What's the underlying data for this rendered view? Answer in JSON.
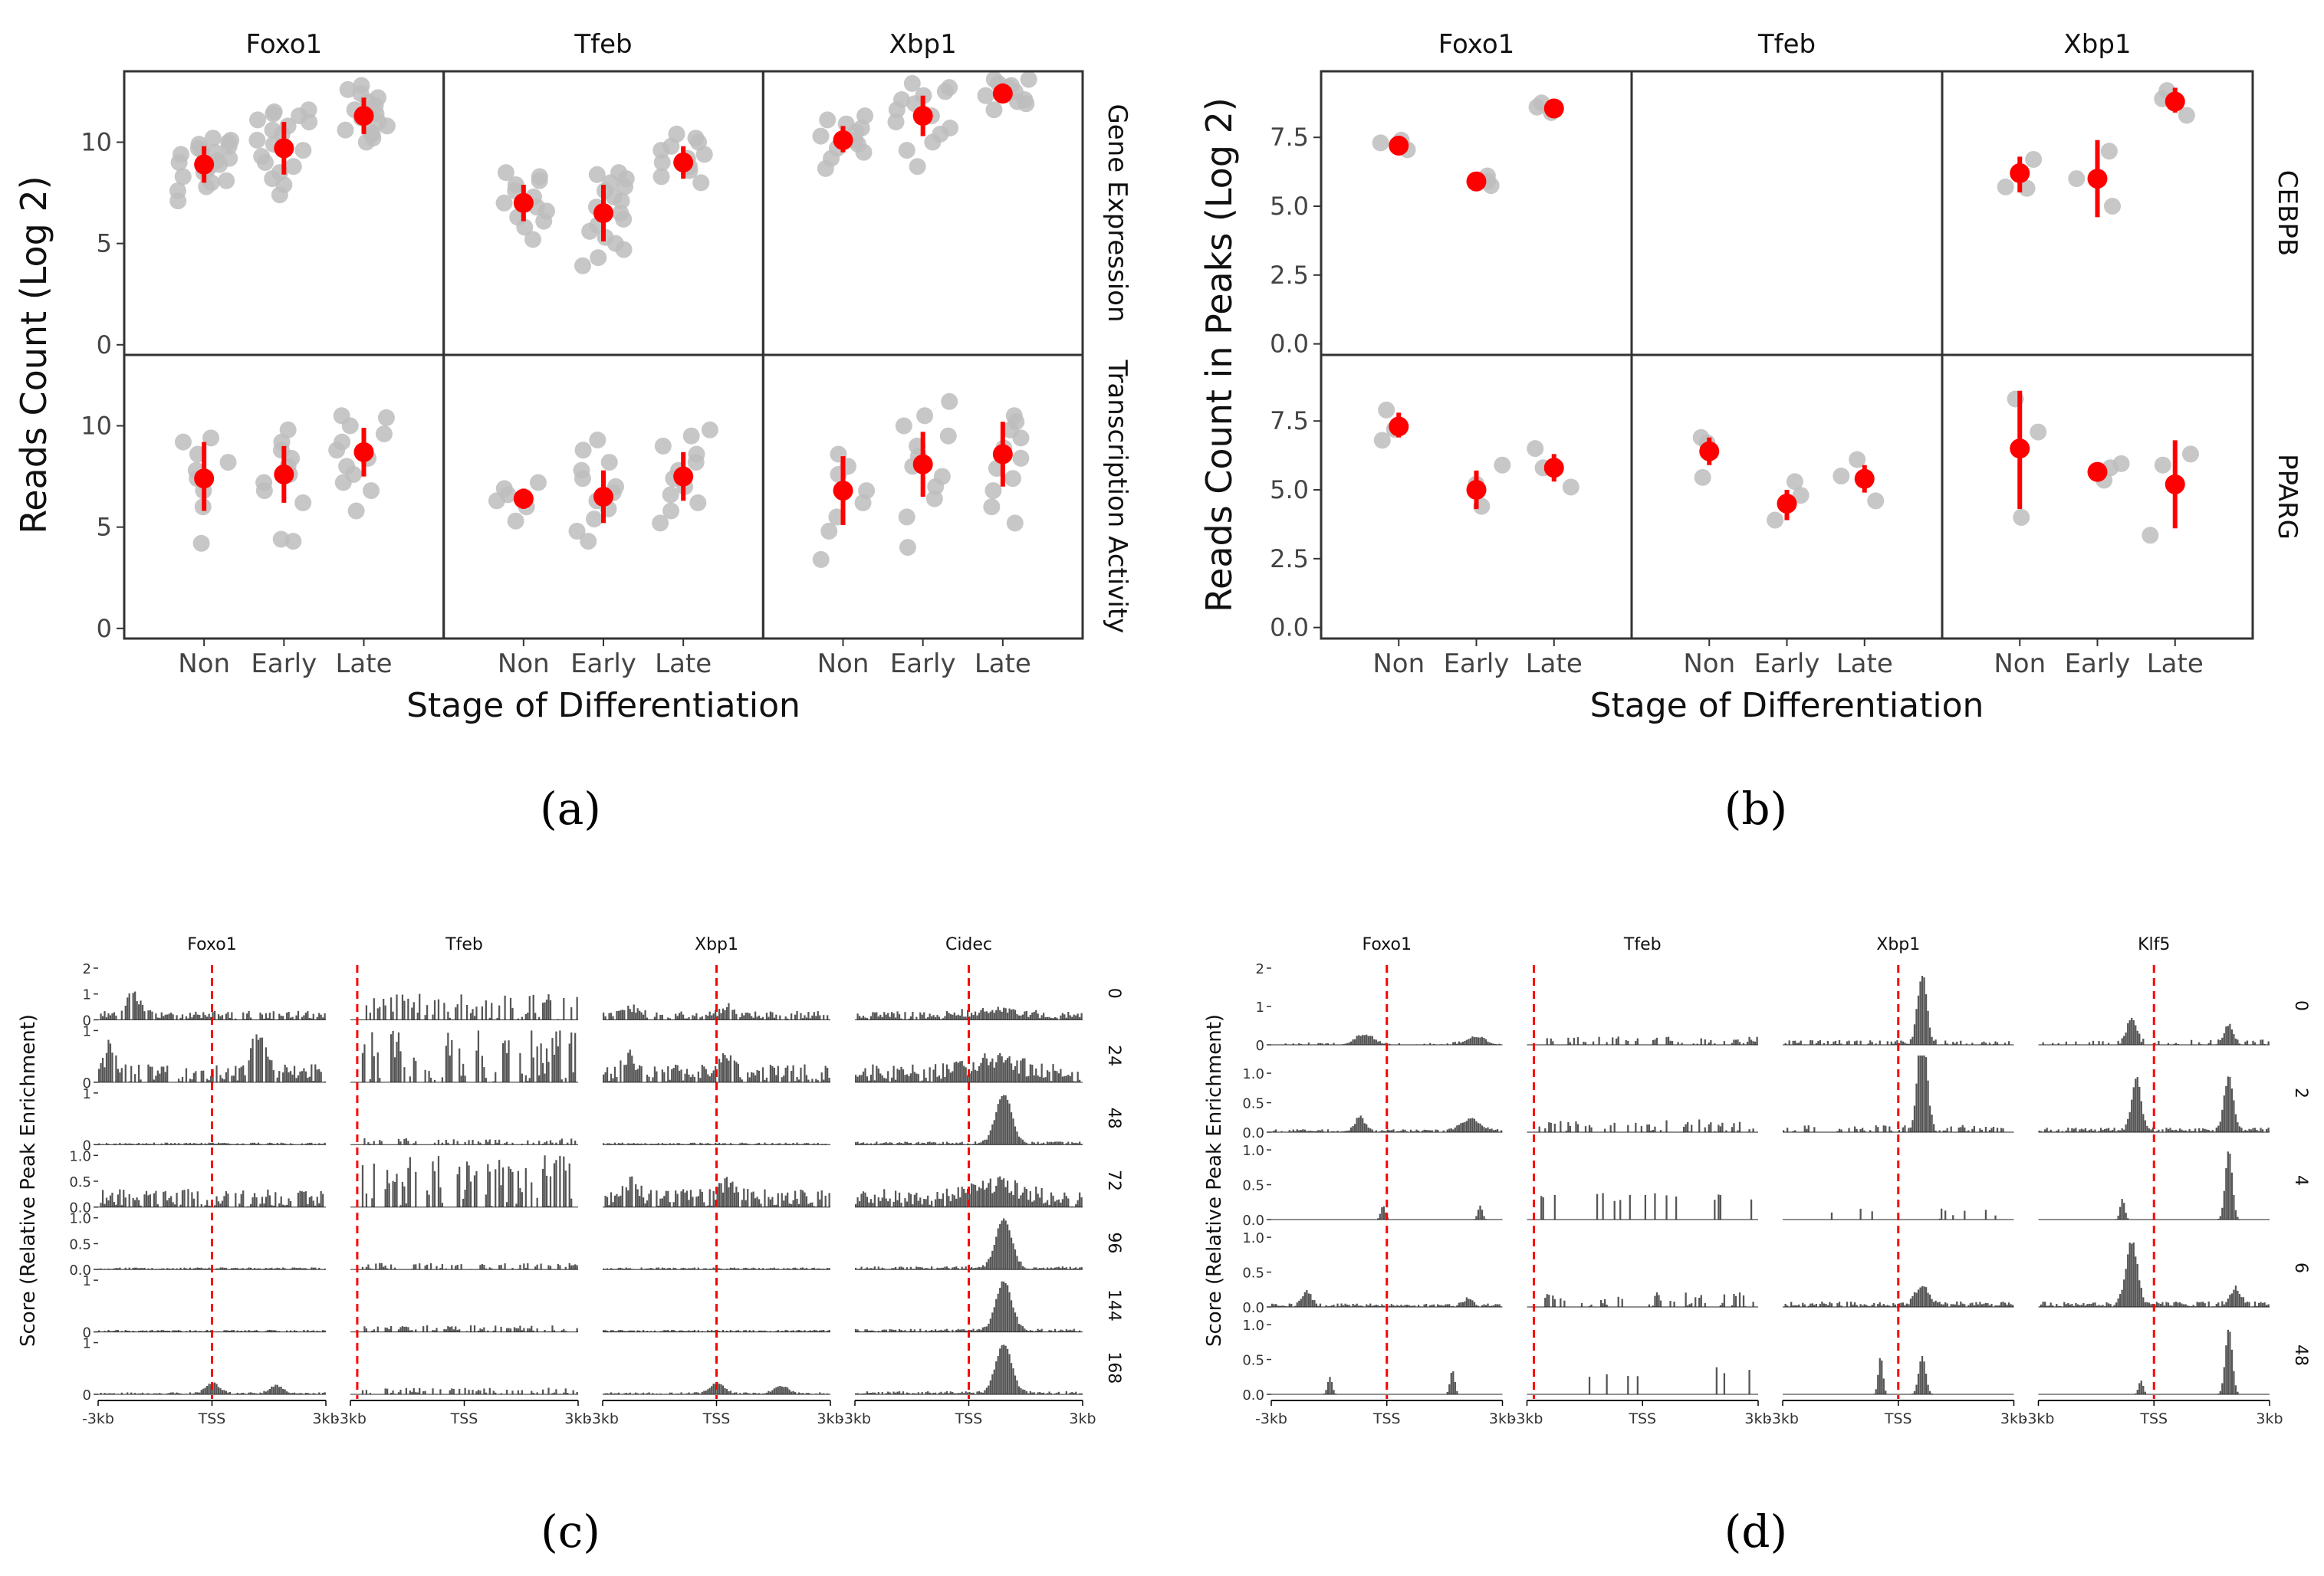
{
  "panel_labels": [
    "(a)",
    "(b)",
    "(c)",
    "(d)"
  ],
  "palette": {
    "point_grey": "#bdbdbd",
    "summary_red": "#ff0000",
    "frame": "#333333",
    "track_fill": "#555555",
    "tss_line": "#ff0000"
  },
  "chart_data": [
    {
      "id": "a",
      "type": "scatter",
      "description_of_marks": "jittered replicate points (grey) with mean and range (red)",
      "facet_columns": [
        "Foxo1",
        "Tfeb",
        "Xbp1"
      ],
      "facet_rows": [
        "Gene Expression",
        "Transcription Activity"
      ],
      "xlabel": "Stage of Differentiation",
      "ylabel": "Reads Count (Log 2)",
      "categories": [
        "Non",
        "Early",
        "Late"
      ],
      "ylim": [
        -0.5,
        13.5
      ],
      "yticks": [
        0,
        5,
        10
      ],
      "ytick_labels": [
        "0",
        "5",
        "10"
      ],
      "cells": [
        {
          "col": "Foxo1",
          "row": "Gene Expression",
          "groups": [
            {
              "stage": "Non",
              "mean": 8.9,
              "low": 8.0,
              "high": 9.8,
              "points": [
                7.1,
                7.6,
                7.8,
                8.0,
                8.1,
                8.3,
                8.5,
                8.6,
                8.8,
                8.9,
                9.0,
                9.1,
                9.2,
                9.4,
                9.5,
                9.6,
                9.7,
                9.8,
                9.9,
                10.0,
                10.1,
                10.2
              ]
            },
            {
              "stage": "Early",
              "mean": 9.7,
              "low": 8.4,
              "high": 11.0,
              "points": [
                7.4,
                7.9,
                8.2,
                8.5,
                8.8,
                9.0,
                9.3,
                9.6,
                9.9,
                10.1,
                10.4,
                10.6,
                10.8,
                11.0,
                11.1,
                11.3,
                11.4,
                11.5,
                11.6
              ]
            },
            {
              "stage": "Late",
              "mean": 11.3,
              "low": 10.4,
              "high": 12.2,
              "points": [
                10.0,
                10.2,
                10.4,
                10.5,
                10.6,
                10.8,
                11.0,
                11.2,
                11.4,
                11.6,
                11.8,
                12.0,
                12.2,
                12.4,
                12.6,
                12.8
              ]
            }
          ]
        },
        {
          "col": "Tfeb",
          "row": "Gene Expression",
          "groups": [
            {
              "stage": "Non",
              "mean": 7.0,
              "low": 6.1,
              "high": 7.9,
              "points": [
                5.2,
                5.8,
                6.1,
                6.3,
                6.6,
                6.8,
                7.0,
                7.3,
                7.6,
                7.9,
                8.1,
                8.3,
                8.5
              ]
            },
            {
              "stage": "Early",
              "mean": 6.5,
              "low": 5.1,
              "high": 7.9,
              "points": [
                3.9,
                4.3,
                4.7,
                5.0,
                5.3,
                5.6,
                5.9,
                6.2,
                6.5,
                6.8,
                7.1,
                7.3,
                7.6,
                7.8,
                8.0,
                8.2,
                8.4,
                8.5
              ]
            },
            {
              "stage": "Late",
              "mean": 9.0,
              "low": 8.2,
              "high": 9.8,
              "points": [
                8.0,
                8.3,
                8.6,
                8.8,
                9.0,
                9.2,
                9.4,
                9.6,
                9.8,
                10.0,
                10.2,
                10.4
              ]
            }
          ]
        },
        {
          "col": "Xbp1",
          "row": "Gene Expression",
          "groups": [
            {
              "stage": "Non",
              "mean": 10.1,
              "low": 9.5,
              "high": 10.8,
              "points": [
                8.7,
                9.2,
                9.5,
                9.7,
                9.9,
                10.1,
                10.3,
                10.5,
                10.7,
                10.9,
                11.1,
                11.3
              ]
            },
            {
              "stage": "Early",
              "mean": 11.3,
              "low": 10.3,
              "high": 12.3,
              "points": [
                8.8,
                9.6,
                10.0,
                10.4,
                10.7,
                11.0,
                11.3,
                11.6,
                11.9,
                12.1,
                12.3,
                12.5,
                12.7,
                12.9
              ]
            },
            {
              "stage": "Late",
              "mean": 12.4,
              "low": 12.0,
              "high": 12.9,
              "points": [
                11.6,
                11.9,
                12.1,
                12.3,
                12.5,
                12.7,
                12.9,
                13.1,
                13.1,
                12.0,
                12.8
              ]
            }
          ]
        },
        {
          "col": "Foxo1",
          "row": "Transcription Activity",
          "groups": [
            {
              "stage": "Non",
              "mean": 7.4,
              "low": 5.8,
              "high": 9.2,
              "points": [
                4.2,
                6.0,
                6.8,
                7.4,
                7.8,
                8.2,
                8.6,
                9.2,
                9.4
              ]
            },
            {
              "stage": "Early",
              "mean": 7.6,
              "low": 6.2,
              "high": 9.0,
              "points": [
                4.3,
                4.4,
                6.2,
                6.8,
                7.2,
                7.6,
                8.0,
                8.4,
                8.8,
                9.2,
                9.8
              ]
            },
            {
              "stage": "Late",
              "mean": 8.7,
              "low": 7.5,
              "high": 9.9,
              "points": [
                5.8,
                6.8,
                7.2,
                7.6,
                8.0,
                8.4,
                8.8,
                9.2,
                9.6,
                10.0,
                10.4,
                10.5
              ]
            }
          ]
        },
        {
          "col": "Tfeb",
          "row": "Transcription Activity",
          "groups": [
            {
              "stage": "Non",
              "mean": 6.4,
              "low": 5.9,
              "high": 6.9,
              "points": [
                5.3,
                6.0,
                6.3,
                6.6,
                6.9,
                7.2
              ]
            },
            {
              "stage": "Early",
              "mean": 6.5,
              "low": 5.2,
              "high": 7.8,
              "points": [
                4.3,
                4.8,
                5.4,
                5.9,
                6.3,
                6.7,
                7.0,
                7.4,
                7.8,
                8.2,
                8.8,
                9.3
              ]
            },
            {
              "stage": "Late",
              "mean": 7.5,
              "low": 6.3,
              "high": 8.7,
              "points": [
                5.2,
                5.8,
                6.2,
                6.6,
                7.0,
                7.4,
                7.8,
                8.2,
                8.6,
                9.0,
                9.5,
                9.8
              ]
            }
          ]
        },
        {
          "col": "Xbp1",
          "row": "Transcription Activity",
          "groups": [
            {
              "stage": "Non",
              "mean": 6.8,
              "low": 5.1,
              "high": 8.5,
              "points": [
                3.4,
                4.8,
                5.5,
                6.2,
                6.8,
                7.6,
                8.0,
                8.6
              ]
            },
            {
              "stage": "Early",
              "mean": 8.1,
              "low": 6.5,
              "high": 9.7,
              "points": [
                4.0,
                5.5,
                6.4,
                7.0,
                7.5,
                8.0,
                8.5,
                9.0,
                9.5,
                10.0,
                10.5,
                11.2
              ]
            },
            {
              "stage": "Late",
              "mean": 8.6,
              "low": 7.0,
              "high": 10.2,
              "points": [
                5.2,
                6.0,
                6.8,
                7.4,
                7.9,
                8.4,
                8.9,
                9.4,
                9.8,
                10.2,
                10.5
              ]
            }
          ]
        }
      ]
    },
    {
      "id": "b",
      "type": "scatter",
      "description_of_marks": "replicate points (grey) with mean and range (red)",
      "facet_columns": [
        "Foxo1",
        "Tfeb",
        "Xbp1"
      ],
      "facet_rows": [
        "CEBPB",
        "PPARG"
      ],
      "xlabel": "Stage of Differentiation",
      "ylabel": "Reads Count in Peaks (Log 2)",
      "categories": [
        "Non",
        "Early",
        "Late"
      ],
      "ylim": [
        -0.4,
        9.9
      ],
      "yticks": [
        0,
        2.5,
        5,
        7.5
      ],
      "ytick_labels": [
        "0.0",
        "2.5",
        "5.0",
        "7.5"
      ],
      "cells": [
        {
          "col": "Foxo1",
          "row": "CEBPB",
          "groups": [
            {
              "stage": "Non",
              "mean": 7.2,
              "low": 7.15,
              "high": 7.25,
              "points": [
                7.4,
                7.3,
                7.05
              ]
            },
            {
              "stage": "Early",
              "mean": 5.9,
              "low": 5.85,
              "high": 5.95,
              "points": [
                6.1,
                5.75,
                5.9
              ]
            },
            {
              "stage": "Late",
              "mean": 8.55,
              "low": 8.5,
              "high": 8.6,
              "points": [
                8.4,
                8.75,
                8.6
              ]
            }
          ]
        },
        {
          "col": "Tfeb",
          "row": "CEBPB",
          "groups": []
        },
        {
          "col": "Xbp1",
          "row": "CEBPB",
          "groups": [
            {
              "stage": "Non",
              "mean": 6.2,
              "low": 5.5,
              "high": 6.8,
              "points": [
                6.7,
                5.7,
                5.65
              ]
            },
            {
              "stage": "Early",
              "mean": 6.0,
              "low": 4.6,
              "high": 7.4,
              "points": [
                7.0,
                5.0,
                6.0
              ]
            },
            {
              "stage": "Late",
              "mean": 8.8,
              "low": 8.4,
              "high": 9.3,
              "points": [
                8.3,
                9.2,
                8.9
              ]
            }
          ]
        },
        {
          "col": "Foxo1",
          "row": "PPARG",
          "groups": [
            {
              "stage": "Non",
              "mean": 7.3,
              "low": 6.9,
              "high": 7.8,
              "points": [
                7.9,
                6.8,
                7.2
              ]
            },
            {
              "stage": "Early",
              "mean": 5.0,
              "low": 4.3,
              "high": 5.7,
              "points": [
                5.9,
                5.2,
                4.4
              ]
            },
            {
              "stage": "Late",
              "mean": 5.8,
              "low": 5.3,
              "high": 6.3,
              "points": [
                6.5,
                5.1,
                5.8
              ]
            }
          ]
        },
        {
          "col": "Tfeb",
          "row": "PPARG",
          "groups": [
            {
              "stage": "Non",
              "mean": 6.4,
              "low": 5.9,
              "high": 6.9,
              "points": [
                6.9,
                5.45,
                6.7
              ]
            },
            {
              "stage": "Early",
              "mean": 4.5,
              "low": 3.9,
              "high": 5.0,
              "points": [
                4.8,
                3.9,
                5.3
              ]
            },
            {
              "stage": "Late",
              "mean": 5.4,
              "low": 4.9,
              "high": 5.9,
              "points": [
                6.1,
                4.6,
                5.5
              ]
            }
          ]
        },
        {
          "col": "Xbp1",
          "row": "PPARG",
          "groups": [
            {
              "stage": "Non",
              "mean": 6.5,
              "low": 4.3,
              "high": 8.6,
              "points": [
                8.3,
                7.1,
                4.0
              ]
            },
            {
              "stage": "Early",
              "mean": 5.65,
              "low": 5.5,
              "high": 5.8,
              "points": [
                5.35,
                5.8,
                5.95
              ]
            },
            {
              "stage": "Late",
              "mean": 5.2,
              "low": 3.6,
              "high": 6.8,
              "points": [
                6.3,
                5.9,
                3.35
              ]
            }
          ]
        }
      ]
    },
    {
      "id": "c",
      "type": "area",
      "description_of_marks": "enrichment tracks around TSS per gene and timepoint",
      "facet_columns": [
        "Foxo1",
        "Tfeb",
        "Xbp1",
        "Cidec"
      ],
      "facet_rows": [
        "0",
        "24",
        "48",
        "72",
        "96",
        "144",
        "168"
      ],
      "ylabel": "Score (Relative Peak Enrichment)",
      "x_ticks": [
        "-3kb",
        "TSS",
        "3kb"
      ],
      "row_ymax": [
        2,
        1,
        1,
        1,
        1,
        1,
        1
      ],
      "row_yticks": [
        [
          "0",
          "1",
          "2"
        ],
        [
          "0",
          "1"
        ],
        [
          "0",
          "1"
        ],
        [
          "0.0",
          "0.5",
          "1.0"
        ],
        [
          "0.0",
          "0.5",
          "1.0"
        ],
        [
          "0",
          "1"
        ],
        [
          "0",
          "1"
        ]
      ]
    },
    {
      "id": "d",
      "type": "area",
      "description_of_marks": "enrichment tracks around TSS per gene and timepoint",
      "facet_columns": [
        "Foxo1",
        "Tfeb",
        "Xbp1",
        "Klf5"
      ],
      "facet_rows": [
        "0",
        "2",
        "4",
        "6",
        "48"
      ],
      "ylabel": "Score (Relative Peak Enrichment)",
      "x_ticks": [
        "-3kb",
        "TSS",
        "3kb"
      ],
      "row_ymax": [
        2,
        1.3,
        1.1,
        1.1,
        1.1
      ],
      "row_yticks": [
        [
          "0",
          "1",
          "2"
        ],
        [
          "0.0",
          "0.5",
          "1.0"
        ],
        [
          "0.0",
          "0.5",
          "1.0"
        ],
        [
          "0.0",
          "0.5",
          "1.0"
        ],
        [
          "0.0",
          "0.5",
          "1.0"
        ]
      ]
    }
  ]
}
